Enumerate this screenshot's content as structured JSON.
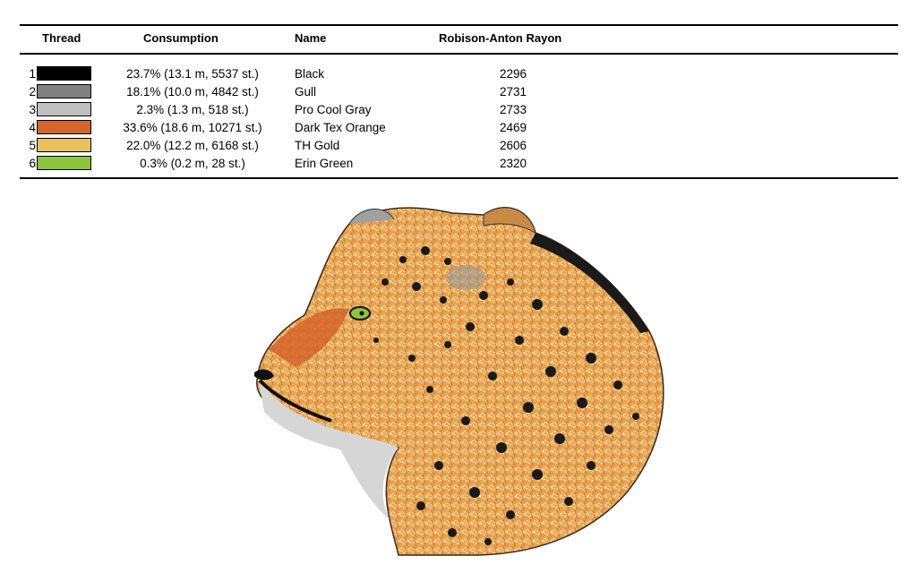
{
  "header": {
    "thread": "Thread",
    "consumption": "Consumption",
    "name": "Name",
    "brand": "Robison-Anton Rayon"
  },
  "threads": [
    {
      "num": "1",
      "color": "#000000",
      "consumption": "23.7% (13.1 m, 5537 st.)",
      "name": "Black",
      "code": "2296"
    },
    {
      "num": "2",
      "color": "#808080",
      "consumption": "18.1% (10.0 m, 4842 st.)",
      "name": "Gull",
      "code": "2731"
    },
    {
      "num": "3",
      "color": "#c0c0c0",
      "consumption": "2.3% (1.3 m, 518 st.)",
      "name": "Pro Cool Gray",
      "code": "2733"
    },
    {
      "num": "4",
      "color": "#d5652a",
      "consumption": "33.6% (18.6 m, 10271 st.)",
      "name": "Dark Tex Orange",
      "code": "2469"
    },
    {
      "num": "5",
      "color": "#e9c15b",
      "consumption": "22.0% (12.2 m, 6168 st.)",
      "name": "TH Gold",
      "code": "2606"
    },
    {
      "num": "6",
      "color": "#8cc43b",
      "consumption": "0.3% (0.2 m, 28 st.)",
      "name": "Erin Green",
      "code": "2320"
    }
  ],
  "design": {
    "icon": "leopard-head-embroidery"
  }
}
